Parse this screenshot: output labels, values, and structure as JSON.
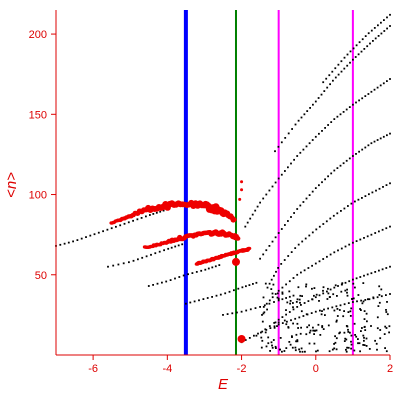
{
  "chart_data": {
    "type": "scatter",
    "xlabel": "E",
    "ylabel": "<n>",
    "xlim": [
      -7.0,
      2.0
    ],
    "ylim": [
      0,
      215
    ],
    "x_ticks": [
      "-6",
      "-4",
      "-2",
      "0",
      "2"
    ],
    "y_ticks": [
      "50",
      "100",
      "150",
      "200"
    ],
    "x_tick_values": [
      -6,
      -4,
      -2,
      0,
      2
    ],
    "y_tick_values": [
      50,
      100,
      150,
      200
    ],
    "grid": false,
    "legend": "none",
    "colors": {
      "axes": "#dd0000",
      "black_points": "#000000",
      "red_points": "#ee0000",
      "blue_line": "#0000ff",
      "green_line": "#008000",
      "magenta_line": "#ff00ff"
    },
    "vertical_lines": [
      {
        "x": -3.5,
        "color": "#0000ff",
        "width": 4
      },
      {
        "x": -2.15,
        "color": "#008000",
        "width": 2
      },
      {
        "x": -1.0,
        "color": "#ff00ff",
        "width": 2
      },
      {
        "x": 1.0,
        "color": "#ff00ff",
        "width": 2
      }
    ],
    "black_branches": [
      {
        "x": [
          -7.0,
          -6.5,
          -6.0,
          -5.5,
          -5.0,
          -4.5,
          -4.1
        ],
        "y": [
          68,
          71,
          75,
          79,
          83,
          87,
          90
        ]
      },
      {
        "x": [
          -5.6,
          -5.0,
          -4.5,
          -4.0,
          -3.6
        ],
        "y": [
          55,
          58,
          62,
          66,
          69
        ]
      },
      {
        "x": [
          -4.5,
          -4.0,
          -3.5,
          -3.0,
          -2.6
        ],
        "y": [
          43,
          46,
          50,
          53,
          56
        ]
      },
      {
        "x": [
          -3.5,
          -3.0,
          -2.5,
          -2.0,
          -1.6
        ],
        "y": [
          32,
          35,
          38,
          42,
          45
        ]
      },
      {
        "x": [
          -2.5,
          -2.0,
          -1.5,
          -1.0,
          -0.6
        ],
        "y": [
          25,
          27,
          30,
          34,
          37
        ]
      },
      {
        "x": [
          -2.0,
          -1.5,
          -1.0,
          -0.5,
          0.0,
          0.5,
          1.0,
          1.5,
          2.0
        ],
        "y": [
          8,
          14,
          19,
          23,
          27,
          30,
          33,
          35,
          38
        ]
      },
      {
        "x": [
          -1.6,
          -1.0,
          -0.5,
          0.0,
          0.5,
          1.0,
          1.5,
          2.0
        ],
        "y": [
          12,
          22,
          30,
          36,
          42,
          47,
          51,
          55
        ]
      },
      {
        "x": [
          -1.4,
          -1.0,
          -0.5,
          0.0,
          0.5,
          1.0,
          1.5,
          2.0
        ],
        "y": [
          30,
          40,
          50,
          57,
          64,
          70,
          75,
          80
        ]
      },
      {
        "x": [
          -1.3,
          -1.0,
          -0.5,
          0.0,
          0.5,
          1.0,
          1.5,
          2.0
        ],
        "y": [
          42,
          55,
          68,
          78,
          87,
          95,
          101,
          107
        ]
      },
      {
        "x": [
          -1.5,
          -1.0,
          -0.5,
          0.0,
          0.5,
          1.0,
          1.5,
          2.0
        ],
        "y": [
          60,
          76,
          91,
          104,
          115,
          124,
          132,
          138
        ]
      },
      {
        "x": [
          -1.9,
          -1.5,
          -1.0,
          -0.5,
          0.0,
          0.5,
          1.0,
          1.5,
          2.0
        ],
        "y": [
          80,
          95,
          110,
          124,
          136,
          147,
          156,
          164,
          172
        ]
      },
      {
        "x": [
          -1.1,
          -0.5,
          0.0,
          0.5,
          1.0,
          1.5,
          2.0
        ],
        "y": [
          127,
          145,
          158,
          172,
          184,
          195,
          205
        ]
      },
      {
        "x": [
          0.2,
          0.8,
          1.4,
          2.0
        ],
        "y": [
          170,
          186,
          200,
          212
        ]
      }
    ],
    "black_scatter_region": {
      "x_range": [
        -1.5,
        2.0
      ],
      "y_range": [
        2,
        45
      ],
      "count": 230
    },
    "red_branches": [
      {
        "x": [
          -5.5,
          -5.0,
          -4.5,
          -4.0,
          -3.5,
          -3.0,
          -2.7,
          -2.4,
          -2.2
        ],
        "y": [
          82,
          87,
          91,
          93,
          94,
          93,
          91,
          88,
          84
        ],
        "thickness": [
          2,
          3,
          4,
          5,
          4,
          5,
          6,
          4,
          3
        ]
      },
      {
        "x": [
          -4.6,
          -4.2,
          -3.8,
          -3.4,
          -3.0,
          -2.6,
          -2.3,
          -2.1
        ],
        "y": [
          67,
          69,
          72,
          74,
          76,
          76,
          75,
          73
        ],
        "thickness": [
          2,
          2,
          3,
          3,
          3,
          4,
          3,
          3
        ]
      },
      {
        "x": [
          -3.2,
          -2.9,
          -2.6,
          -2.3,
          -2.0,
          -1.8
        ],
        "y": [
          57,
          59,
          61,
          63,
          65,
          66
        ],
        "thickness": [
          2,
          2,
          2,
          2,
          2,
          2
        ]
      }
    ],
    "red_markers": [
      {
        "x": -2.15,
        "y": 58,
        "r": 4
      },
      {
        "x": -2.0,
        "y": 10,
        "r": 4
      },
      {
        "x": -2.0,
        "y": 108,
        "r": 1.5
      },
      {
        "x": -2.0,
        "y": 103,
        "r": 1.5
      },
      {
        "x": -2.05,
        "y": 97,
        "r": 1.5
      }
    ]
  }
}
